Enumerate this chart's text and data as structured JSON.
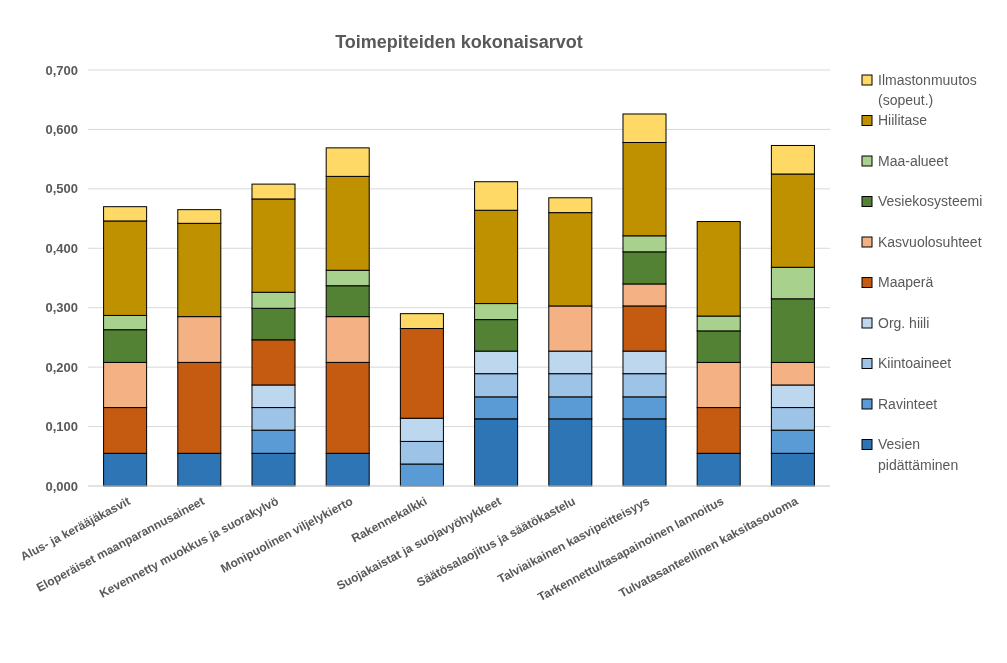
{
  "chart_data": {
    "type": "bar",
    "stacked": true,
    "title": "Toimepiteiden kokonaisarvot",
    "categories": [
      "Alus- ja kerääjäkasvit",
      "Eloperäiset maanparannusaineet",
      "Kevennetty muokkus ja suorakylvö",
      "Monipuolinen viljelykierto",
      "Rakennekalkki",
      "Suojakaistat ja suojavyöhykkeet",
      "Säätösalaojitus ja säätökastelu",
      "Talviaikainen kasvipeitteisyys",
      "Tarkennettu/tasapainoinen lannoitus",
      "Tulvatasanteellinen kaksitasouoma"
    ],
    "series": [
      {
        "name": "Vesien pidättäminen",
        "color": "#2e75b6",
        "values": [
          0.055,
          0.055,
          0.055,
          0.055,
          null,
          0.113,
          0.113,
          0.113,
          0.055,
          0.055
        ]
      },
      {
        "name": "Ravinteet",
        "color": "#5b9bd5",
        "values": [
          null,
          null,
          0.039,
          null,
          0.037,
          0.037,
          0.037,
          0.037,
          null,
          0.039
        ]
      },
      {
        "name": "Kiintoaineet",
        "color": "#9dc3e6",
        "values": [
          null,
          null,
          0.038,
          null,
          0.038,
          0.039,
          0.039,
          0.039,
          null,
          0.038
        ]
      },
      {
        "name": "Org. hiili",
        "color": "#bdd7ee",
        "values": [
          null,
          null,
          0.038,
          null,
          0.039,
          0.038,
          0.038,
          0.038,
          null,
          0.038
        ]
      },
      {
        "name": "Maaperä",
        "color": "#c55a11",
        "values": [
          0.077,
          0.153,
          0.076,
          0.153,
          0.151,
          null,
          null,
          0.076,
          0.077,
          null
        ]
      },
      {
        "name": "Kasvuolosuhteet",
        "color": "#f4b183",
        "values": [
          0.076,
          0.077,
          null,
          0.077,
          null,
          null,
          0.076,
          0.037,
          0.076,
          0.038
        ]
      },
      {
        "name": "Vesiekosysteemi",
        "color": "#548235",
        "values": [
          0.055,
          null,
          0.053,
          0.052,
          null,
          0.053,
          null,
          0.054,
          0.053,
          0.107
        ]
      },
      {
        "name": "Maa-alueet",
        "color": "#a9d18e",
        "values": [
          0.024,
          null,
          0.027,
          0.026,
          null,
          0.027,
          null,
          0.027,
          0.025,
          0.053
        ]
      },
      {
        "name": "Hiilitase",
        "color": "#bf9000",
        "values": [
          0.159,
          0.157,
          0.157,
          0.158,
          null,
          0.157,
          0.157,
          0.157,
          0.159,
          0.157
        ]
      },
      {
        "name": "Ilmastonmuutos (sopeut.)",
        "color": "#ffd966",
        "values": [
          0.024,
          0.023,
          0.025,
          0.048,
          0.025,
          0.048,
          0.025,
          0.048,
          null,
          0.048
        ]
      }
    ],
    "ylim": [
      0,
      0.7
    ],
    "yticks": [
      {
        "value": 0,
        "label": "0,000"
      },
      {
        "value": 0.1,
        "label": "0,100"
      },
      {
        "value": 0.2,
        "label": "0,200"
      },
      {
        "value": 0.3,
        "label": "0,300"
      },
      {
        "value": 0.4,
        "label": "0,400"
      },
      {
        "value": 0.5,
        "label": "0,500"
      },
      {
        "value": 0.6,
        "label": "0,600"
      },
      {
        "value": 0.7,
        "label": "0,700"
      }
    ],
    "grid": "y",
    "legend": "right"
  }
}
